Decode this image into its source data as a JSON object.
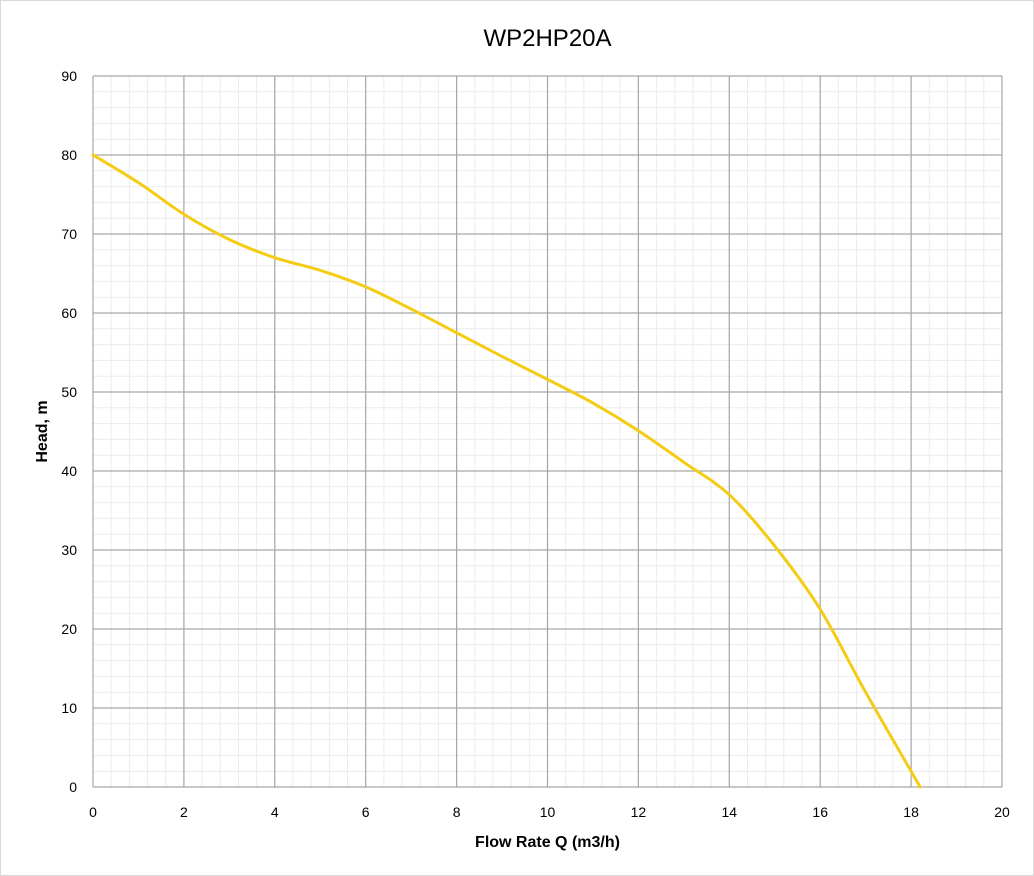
{
  "chart_data": {
    "type": "line",
    "title": "WP2HP20A",
    "xlabel": "Flow Rate Q (m3/h)",
    "ylabel": "Head, m",
    "xlim": [
      0,
      20
    ],
    "ylim": [
      0,
      90
    ],
    "xticks": [
      0,
      2,
      4,
      6,
      8,
      10,
      12,
      14,
      16,
      18,
      20
    ],
    "yticks": [
      0,
      10,
      20,
      30,
      40,
      50,
      60,
      70,
      80,
      90
    ],
    "x_minor_step": 0.4,
    "y_minor_step": 2,
    "grid": true,
    "legend": "none",
    "series": [
      {
        "color": "#f5cc14",
        "x": [
          0,
          1,
          2,
          3,
          4,
          5,
          6,
          7,
          8,
          9,
          10,
          11,
          12,
          13,
          14,
          15,
          16,
          17,
          18.2
        ],
        "y": [
          80,
          76.5,
          72.5,
          69.3,
          67,
          65.4,
          63.3,
          60.5,
          57.5,
          54.5,
          51.6,
          48.6,
          45.1,
          41.1,
          37,
          30.5,
          22.5,
          12,
          0
        ]
      }
    ]
  }
}
